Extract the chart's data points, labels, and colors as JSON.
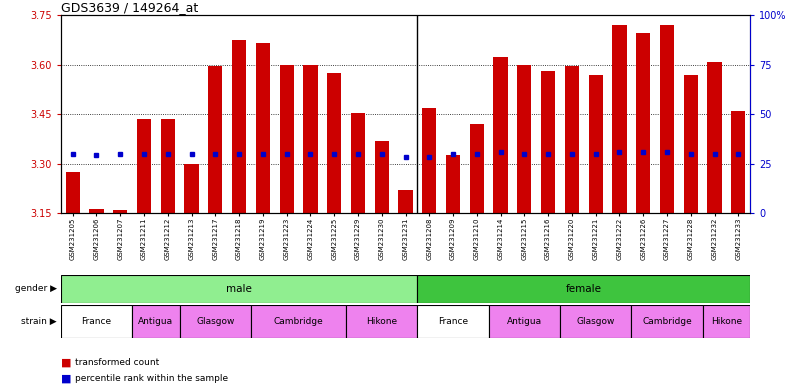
{
  "title": "GDS3639 / 149264_at",
  "samples": [
    "GSM231205",
    "GSM231206",
    "GSM231207",
    "GSM231211",
    "GSM231212",
    "GSM231213",
    "GSM231217",
    "GSM231218",
    "GSM231219",
    "GSM231223",
    "GSM231224",
    "GSM231225",
    "GSM231229",
    "GSM231230",
    "GSM231231",
    "GSM231208",
    "GSM231209",
    "GSM231210",
    "GSM231214",
    "GSM231215",
    "GSM231216",
    "GSM231220",
    "GSM231221",
    "GSM231222",
    "GSM231226",
    "GSM231227",
    "GSM231228",
    "GSM231232",
    "GSM231233"
  ],
  "red_values": [
    3.275,
    3.162,
    3.158,
    3.435,
    3.437,
    3.3,
    3.595,
    3.675,
    3.665,
    3.6,
    3.6,
    3.575,
    3.455,
    3.37,
    3.22,
    3.47,
    3.325,
    3.42,
    3.625,
    3.6,
    3.58,
    3.595,
    3.57,
    3.72,
    3.695,
    3.72,
    3.57,
    3.61,
    3.46
  ],
  "blue_values": [
    3.33,
    3.325,
    3.33,
    3.33,
    3.33,
    3.33,
    3.33,
    3.33,
    3.33,
    3.33,
    3.33,
    3.33,
    3.33,
    3.33,
    3.32,
    3.32,
    3.33,
    3.33,
    3.335,
    3.33,
    3.33,
    3.33,
    3.33,
    3.335,
    3.335,
    3.335,
    3.33,
    3.33,
    3.33
  ],
  "ymin": 3.15,
  "ymax": 3.75,
  "y_ticks_left": [
    3.15,
    3.3,
    3.45,
    3.6,
    3.75
  ],
  "y_ticks_right": [
    0,
    25,
    50,
    75,
    100
  ],
  "bar_color": "#cc0000",
  "dot_color": "#0000cc",
  "male_count": 15,
  "strains_male": [
    {
      "label": "France",
      "start": 0,
      "end": 3,
      "color": "#ffffff"
    },
    {
      "label": "Antigua",
      "start": 3,
      "end": 5,
      "color": "#ee82ee"
    },
    {
      "label": "Glasgow",
      "start": 5,
      "end": 8,
      "color": "#ee82ee"
    },
    {
      "label": "Cambridge",
      "start": 8,
      "end": 12,
      "color": "#ee82ee"
    },
    {
      "label": "Hikone",
      "start": 12,
      "end": 15,
      "color": "#ee82ee"
    }
  ],
  "strains_female": [
    {
      "label": "France",
      "start": 15,
      "end": 18,
      "color": "#ffffff"
    },
    {
      "label": "Antigua",
      "start": 18,
      "end": 21,
      "color": "#ee82ee"
    },
    {
      "label": "Glasgow",
      "start": 21,
      "end": 24,
      "color": "#ee82ee"
    },
    {
      "label": "Cambridge",
      "start": 24,
      "end": 27,
      "color": "#ee82ee"
    },
    {
      "label": "Hikone",
      "start": 27,
      "end": 29,
      "color": "#ee82ee"
    }
  ]
}
